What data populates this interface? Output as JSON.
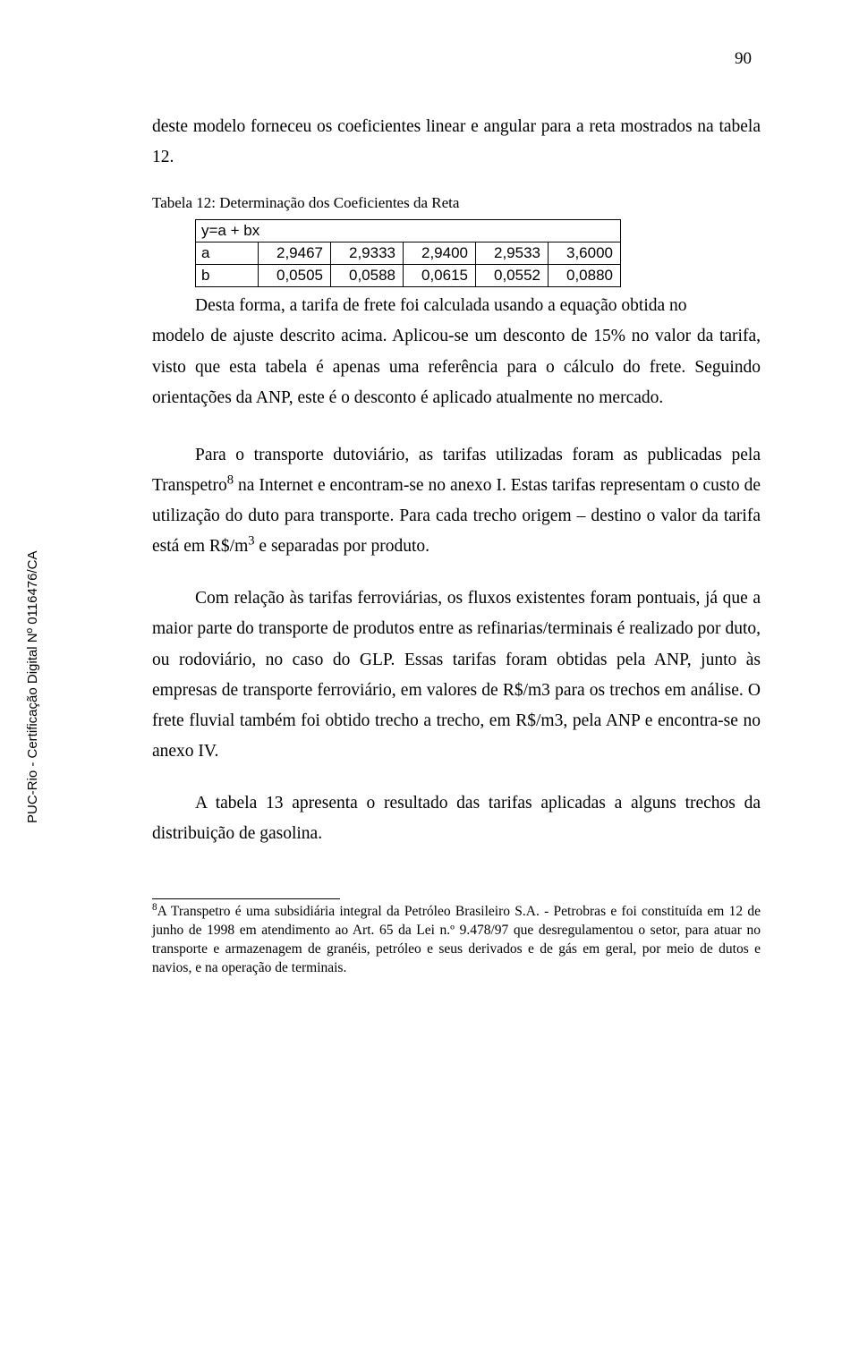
{
  "page_number": "90",
  "para1": "deste modelo forneceu os coeficientes linear e angular para a reta mostrados na tabela 12.",
  "table_caption": "Tabela 12: Determinação dos Coeficientes da Reta",
  "table": {
    "header": "y=a + bx",
    "rows": [
      {
        "label": "a",
        "c1": "2,9467",
        "c2": "2,9333",
        "c3": "2,9400",
        "c4": "2,9533",
        "c5": "3,6000"
      },
      {
        "label": "b",
        "c1": "0,0505",
        "c2": "0,0588",
        "c3": "0,0615",
        "c4": "0,0552",
        "c5": "0,0880"
      }
    ]
  },
  "para2_lead": "Desta forma, a tarifa de frete foi calculada usando a equação obtida no",
  "para2_rest": "modelo de ajuste descrito acima. Aplicou-se um desconto de 15% no valor da tarifa, visto que esta tabela é apenas uma referência para o cálculo do frete. Seguindo orientações da ANP, este é o desconto é aplicado atualmente no mercado.",
  "para3_a": "Para o transporte dutoviário, as tarifas utilizadas foram as publicadas pela Transpetro",
  "para3_sup": "8",
  "para3_b": " na Internet e encontram-se no anexo I. Estas tarifas representam o custo de utilização do duto para transporte. Para cada trecho origem – destino o valor da tarifa está em R$/m",
  "para3_sup2": "3",
  "para3_c": " e separadas por produto.",
  "para4": "Com relação às tarifas ferroviárias, os fluxos existentes foram pontuais, já que a maior parte do transporte de produtos entre as refinarias/terminais é realizado por duto, ou rodoviário, no caso do GLP. Essas tarifas foram obtidas pela ANP, junto às empresas de transporte ferroviário, em valores de R$/m3 para os trechos em análise. O frete fluvial também foi obtido trecho a trecho, em R$/m3, pela ANP e encontra-se no anexo IV.",
  "para5": "A tabela 13 apresenta o resultado das tarifas aplicadas a alguns trechos da distribuição de gasolina.",
  "vertical_label": "PUC-Rio - Certificação Digital Nº 0116476/CA",
  "footnote_sup": "8",
  "footnote_text": "A Transpetro é uma subsidiária integral da Petróleo Brasileiro S.A. - Petrobras e foi constituída em 12 de junho de 1998 em atendimento ao Art. 65 da Lei n.º 9.478/97 que desregulamentou o setor, para atuar no transporte e armazenagem de granéis, petróleo e seus derivados e de gás em geral, por meio de dutos e navios, e na operação de terminais."
}
